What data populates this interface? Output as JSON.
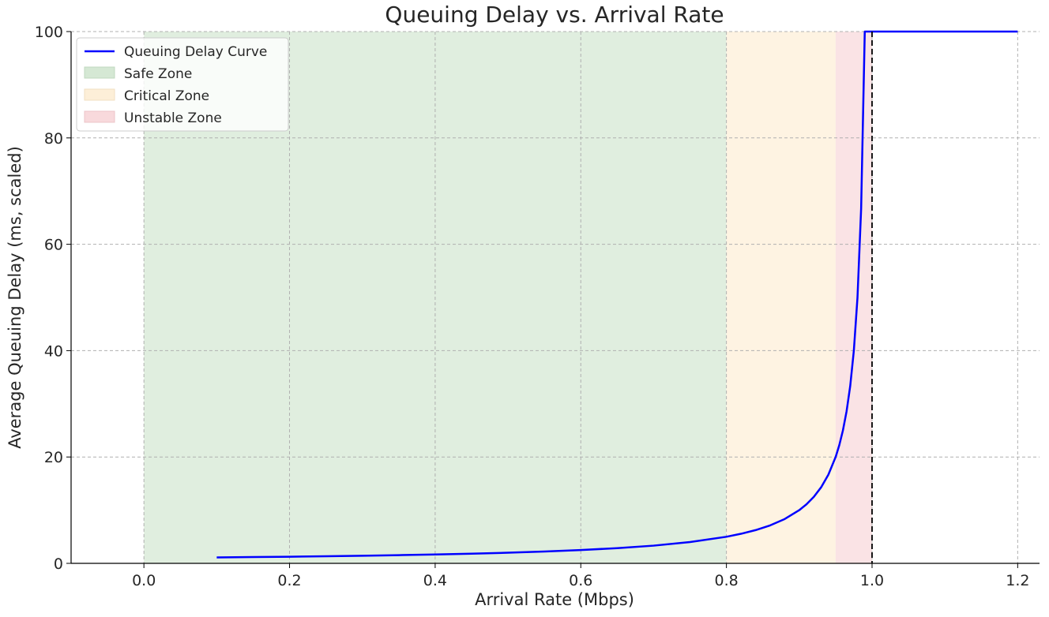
{
  "chart_data": {
    "type": "line",
    "title": "Queuing Delay vs. Arrival Rate",
    "xlabel": "Arrival Rate (Mbps)",
    "ylabel": "Average Queuing Delay (ms, scaled)",
    "xlim": [
      -0.1,
      1.23
    ],
    "ylim": [
      0,
      100
    ],
    "x_ticks": [
      0.0,
      0.2,
      0.4,
      0.6,
      0.8,
      1.0,
      1.2
    ],
    "x_tick_labels": [
      "0.0",
      "0.2",
      "0.4",
      "0.6",
      "0.8",
      "1.0",
      "1.2"
    ],
    "y_ticks": [
      0,
      20,
      40,
      60,
      80,
      100
    ],
    "y_tick_labels": [
      "0",
      "20",
      "40",
      "60",
      "80",
      "100"
    ],
    "grid": true,
    "legend_position": "top-left",
    "series": [
      {
        "name": "Queuing Delay Curve",
        "color": "#0000ff",
        "x": [
          0.1,
          0.15,
          0.2,
          0.25,
          0.3,
          0.35,
          0.4,
          0.45,
          0.5,
          0.55,
          0.6,
          0.65,
          0.7,
          0.75,
          0.8,
          0.82,
          0.84,
          0.86,
          0.88,
          0.9,
          0.91,
          0.92,
          0.93,
          0.94,
          0.95,
          0.955,
          0.96,
          0.965,
          0.97,
          0.975,
          0.98,
          0.985,
          0.99,
          1.0,
          1.1,
          1.2
        ],
        "y": [
          1.11,
          1.18,
          1.25,
          1.33,
          1.43,
          1.54,
          1.67,
          1.82,
          2.0,
          2.22,
          2.5,
          2.86,
          3.33,
          4.0,
          5.0,
          5.56,
          6.25,
          7.14,
          8.33,
          10.0,
          11.11,
          12.5,
          14.29,
          16.67,
          20.0,
          22.22,
          25.0,
          28.57,
          33.33,
          40.0,
          50.0,
          66.67,
          100.0,
          100.0,
          100.0,
          100.0
        ]
      }
    ],
    "zones": [
      {
        "name": "Safe Zone",
        "from": 0.0,
        "to": 0.8,
        "color": "#d5e8d4"
      },
      {
        "name": "Critical Zone",
        "from": 0.8,
        "to": 0.95,
        "color": "#fdefd8"
      },
      {
        "name": "Unstable Zone",
        "from": 0.95,
        "to": 1.0,
        "color": "#f8d9dc"
      }
    ],
    "capacity_line": {
      "x": 1.0,
      "color": "#000000",
      "style": "dashed"
    }
  }
}
